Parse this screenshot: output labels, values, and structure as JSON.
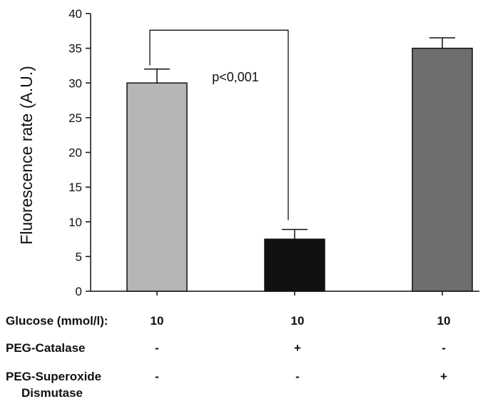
{
  "chart_data": {
    "type": "bar",
    "ylabel": "Fluorescence rate (A.U.)",
    "ylim": [
      0,
      40
    ],
    "yticks": [
      0,
      5,
      10,
      15,
      20,
      25,
      30,
      35,
      40
    ],
    "categories": [
      "Glucose 10",
      "Glucose 10 + PEG-Catalase",
      "Glucose 10 + PEG-Superoxide Dismutase"
    ],
    "values": [
      30,
      7.5,
      35
    ],
    "errors": [
      2,
      1.4,
      1.5
    ],
    "bar_colors": [
      "#b5b5b5",
      "#101010",
      "#6e6e6e"
    ],
    "annotation": {
      "text": "p<0,001",
      "from_bar": 0,
      "to_bar": 1,
      "bracket_y": 37.5
    },
    "grid": false,
    "legend": "none"
  },
  "conditions": {
    "rows": [
      {
        "label": "Glucose (mmol/l):",
        "values": [
          "10",
          "10",
          "10"
        ]
      },
      {
        "label": "PEG-Catalase",
        "values": [
          "-",
          "+",
          "-"
        ]
      },
      {
        "label": "PEG-Superoxide",
        "label_line2": "Dismutase",
        "values": [
          "-",
          "-",
          "+"
        ]
      }
    ]
  }
}
